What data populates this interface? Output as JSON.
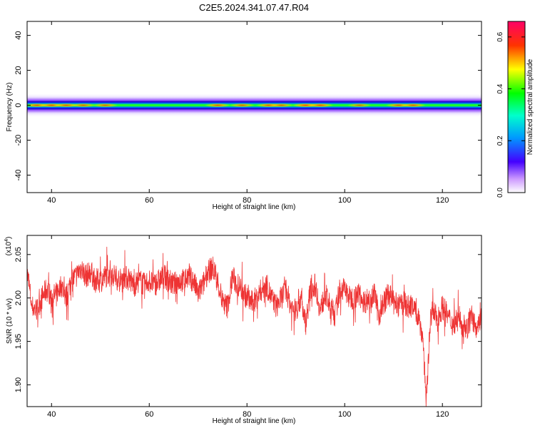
{
  "title": "C2E5.2024.341.07.47.R04",
  "chart_data": [
    {
      "type": "heatmap",
      "xlabel": "Height of straight line (km)",
      "ylabel": "Frequency (Hz)",
      "xlim": [
        35,
        128
      ],
      "ylim": [
        -50,
        48
      ],
      "xticks": [
        40,
        60,
        80,
        100,
        120
      ],
      "yticks": [
        40,
        20,
        0,
        -20,
        -40
      ],
      "ytick_labels": [
        "40",
        "20",
        "0",
        "-20",
        "-40"
      ],
      "band": {
        "center_frequency": 0,
        "strong_halfwidth": 3,
        "weak_halfwidth": 7,
        "hotspots": [
          {
            "x": 37,
            "amp": 0.58
          },
          {
            "x": 40,
            "amp": 0.6
          },
          {
            "x": 43,
            "amp": 0.58
          },
          {
            "x": 46.5,
            "amp": 0.55
          },
          {
            "x": 51,
            "amp": 0.55
          },
          {
            "x": 74,
            "amp": 0.58
          },
          {
            "x": 79,
            "amp": 0.55
          },
          {
            "x": 84.5,
            "amp": 0.6
          },
          {
            "x": 87,
            "amp": 0.55
          },
          {
            "x": 92,
            "amp": 0.66
          },
          {
            "x": 95,
            "amp": 0.62
          },
          {
            "x": 103,
            "amp": 0.5
          },
          {
            "x": 111,
            "amp": 0.56
          },
          {
            "x": 114,
            "amp": 0.58
          }
        ]
      },
      "colorbar": {
        "label": "Normalized spectral amplitude",
        "range": [
          0,
          0.66
        ],
        "ticks": [
          0.0,
          0.2,
          0.4,
          0.6
        ],
        "tick_labels": [
          "0.0",
          "0.2",
          "0.4",
          "0.6"
        ]
      }
    },
    {
      "type": "line",
      "xlabel": "Height of straight line (km)",
      "ylabel": "SNR (10 * v/v)",
      "yexponent_label": "(x10",
      "yexponent": "4",
      "xlim": [
        35,
        128
      ],
      "ylim": [
        1.875,
        2.072
      ],
      "xticks": [
        40,
        60,
        80,
        100,
        120
      ],
      "yticks": [
        2.05,
        2.0,
        1.95,
        1.9
      ],
      "ytick_labels": [
        "2.05",
        "2.00",
        "1.95",
        "1.90"
      ],
      "color": "#ee3333",
      "series": [
        {
          "x": [
            35,
            36,
            37,
            38,
            39,
            40,
            41,
            42,
            43,
            44,
            45,
            46,
            47,
            48,
            49,
            50,
            51,
            52,
            53,
            54,
            55,
            56,
            57,
            58,
            59,
            60,
            61,
            62,
            63,
            64,
            65,
            66,
            67,
            68,
            69,
            70,
            71,
            72,
            73,
            74,
            75,
            76,
            77,
            78,
            79,
            80,
            81,
            82,
            83,
            84,
            85,
            86,
            87,
            88,
            89,
            90,
            91,
            92,
            93,
            94,
            95,
            96,
            97,
            98,
            99,
            100,
            101,
            102,
            103,
            104,
            105,
            106,
            107,
            108,
            109,
            110,
            111,
            112,
            113,
            114,
            115,
            116,
            116.7,
            117.5,
            118,
            119,
            120,
            121,
            122,
            123,
            124,
            125,
            126,
            127,
            128
          ],
          "values": [
            2.03,
            1.99,
            1.985,
            2.0,
            2.01,
            2.0,
            2.005,
            2.015,
            2.0,
            2.02,
            2.025,
            2.035,
            2.025,
            2.03,
            2.02,
            2.02,
            2.025,
            2.03,
            2.025,
            2.02,
            2.025,
            2.02,
            2.015,
            2.02,
            2.015,
            2.02,
            2.015,
            2.02,
            2.025,
            2.02,
            2.015,
            2.02,
            2.02,
            2.025,
            2.02,
            2.005,
            2.015,
            2.03,
            2.035,
            2.02,
            1.995,
            1.99,
            2.025,
            2.015,
            2.01,
            2.0,
            1.995,
            2.0,
            2.01,
            2.015,
            2.0,
            1.99,
            2.0,
            2.01,
            1.99,
            1.985,
            2.0,
            1.97,
            2.01,
            2.015,
            1.985,
            2.005,
            1.99,
            1.98,
            2.01,
            2.01,
            2.0,
            2.0,
            2.005,
            1.995,
            2.0,
            2.005,
            1.98,
            1.995,
            2.005,
            1.995,
            1.99,
            1.995,
            1.99,
            1.99,
            1.98,
            1.955,
            1.88,
            1.975,
            1.985,
            1.975,
            1.99,
            1.98,
            1.97,
            1.975,
            1.97,
            1.965,
            1.98,
            1.96,
            1.975
          ]
        }
      ]
    }
  ]
}
